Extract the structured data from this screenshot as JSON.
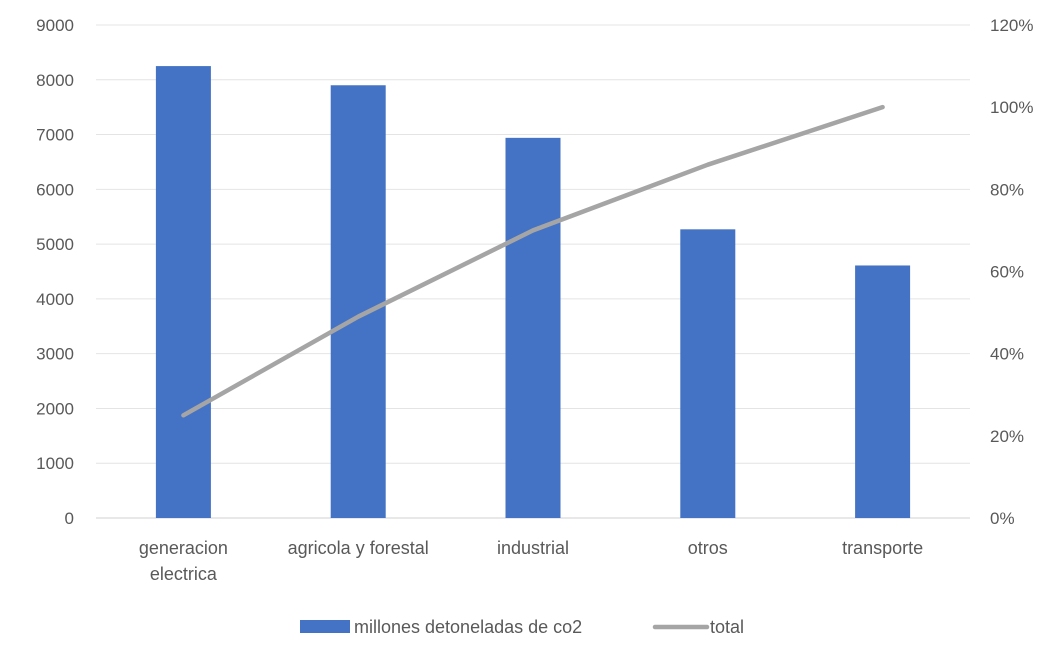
{
  "chart_data": {
    "type": "bar",
    "title": "",
    "xlabel": "",
    "ylabel": "",
    "categories": [
      [
        "generacion",
        "electrica"
      ],
      [
        "agricola y forestal"
      ],
      [
        "industrial"
      ],
      [
        "otros"
      ],
      [
        "transporte"
      ]
    ],
    "series": [
      {
        "name": "millones detoneladas de co2",
        "type": "bar",
        "axis": "left",
        "color": "#4472C4",
        "values": [
          8250,
          7900,
          6940,
          5270,
          4610
        ]
      },
      {
        "name": "total",
        "type": "line",
        "axis": "right",
        "color": "#A5A5A5",
        "values": [
          0.25,
          0.49,
          0.7,
          0.86,
          1.0
        ]
      }
    ],
    "ylim": [
      0,
      9000
    ],
    "y_ticks": [
      "0",
      "1000",
      "2000",
      "3000",
      "4000",
      "5000",
      "6000",
      "7000",
      "8000",
      "9000"
    ],
    "y2lim": [
      0,
      1.2
    ],
    "y2_ticks": [
      "0%",
      "20%",
      "40%",
      "60%",
      "80%",
      "100%",
      "120%"
    ],
    "grid": true,
    "legend": "bottom"
  }
}
